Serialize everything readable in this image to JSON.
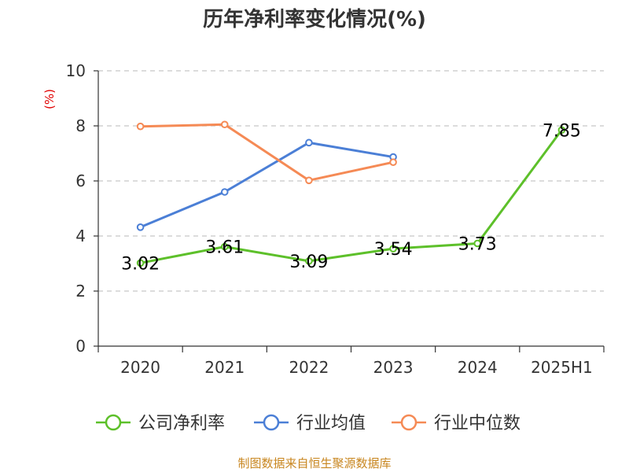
{
  "chart_data": {
    "type": "line",
    "title": "历年净利率变化情况(%)",
    "ylabel": "(%)",
    "xlabel": "",
    "categories": [
      "2020",
      "2021",
      "2022",
      "2023",
      "2024",
      "2025H1"
    ],
    "ylim": [
      0,
      10
    ],
    "yticks": [
      0,
      2,
      4,
      6,
      8,
      10
    ],
    "grid": true,
    "legend_position": "bottom",
    "series": [
      {
        "name": "公司净利率",
        "color": "#5dc02a",
        "values": [
          3.02,
          3.61,
          3.09,
          3.54,
          3.73,
          7.85
        ],
        "show_labels": true
      },
      {
        "name": "行业均值",
        "color": "#4b7fd6",
        "values": [
          4.32,
          5.6,
          7.39,
          6.87,
          null,
          null
        ],
        "show_labels": false
      },
      {
        "name": "行业中位数",
        "color": "#f58a55",
        "values": [
          7.98,
          8.05,
          6.02,
          6.68,
          null,
          null
        ],
        "show_labels": false
      }
    ]
  },
  "source": "制图数据来自恒生聚源数据库"
}
